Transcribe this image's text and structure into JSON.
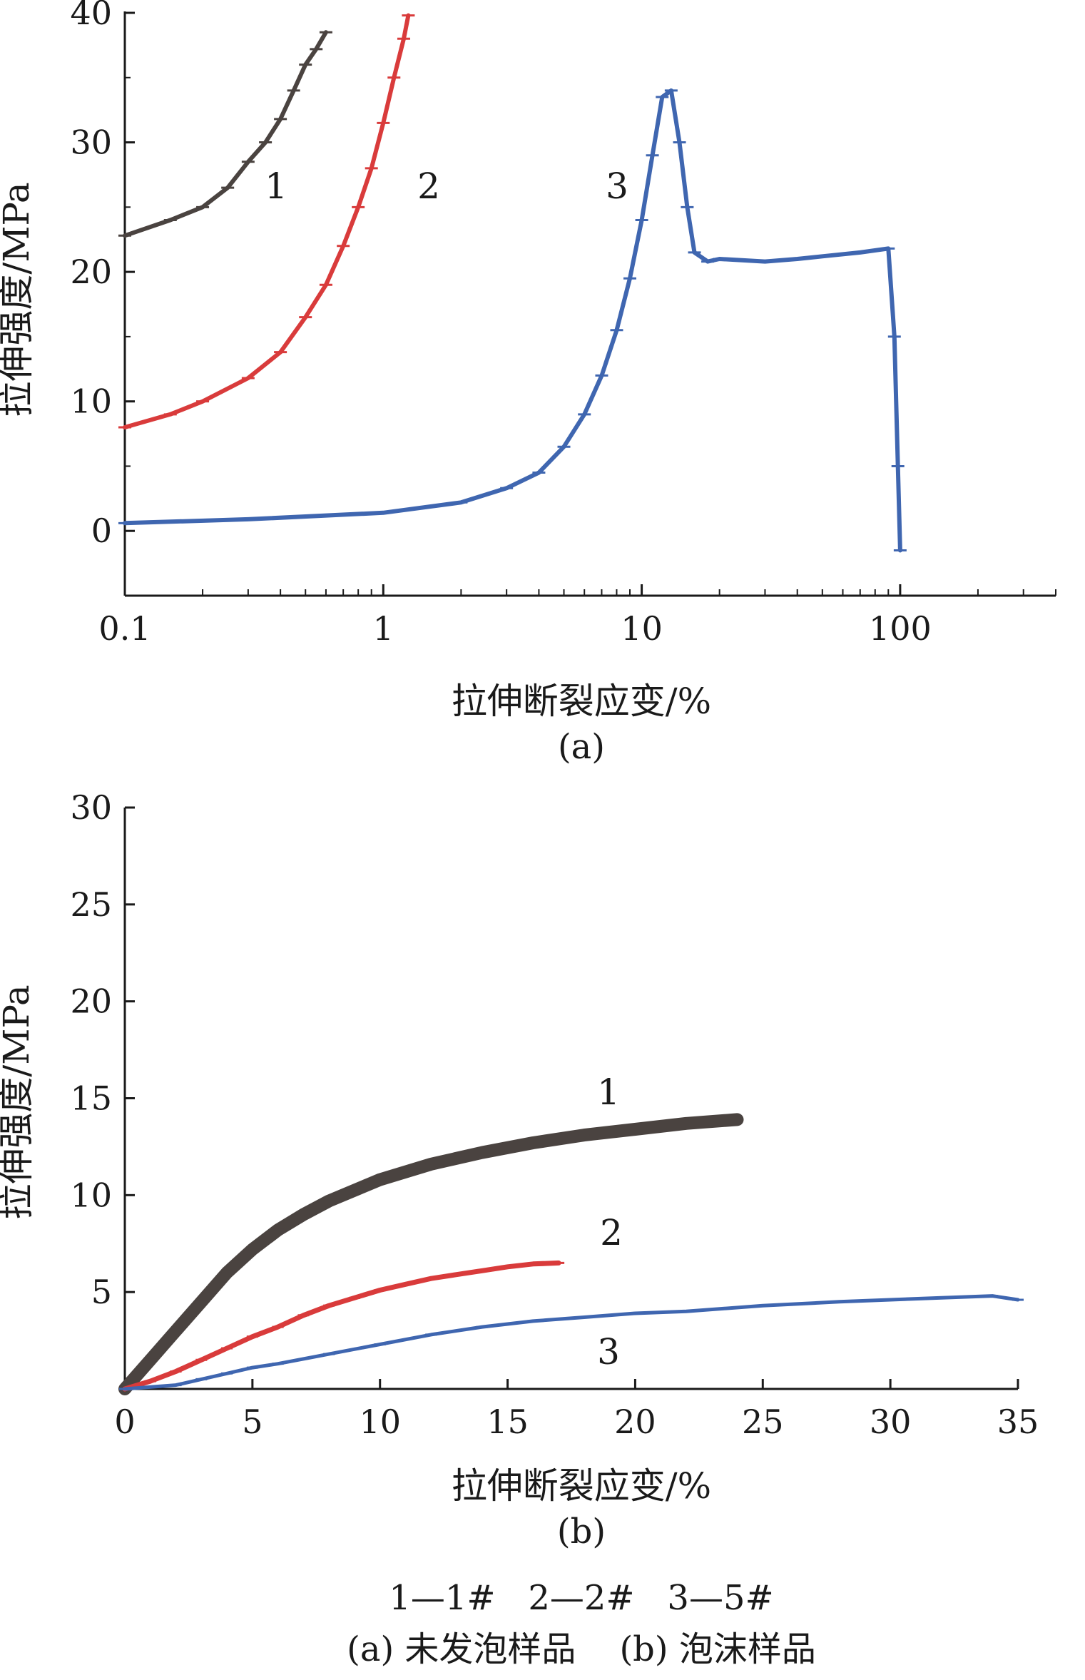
{
  "chart_data": [
    {
      "panel": "(a)",
      "type": "line",
      "xscale": "log",
      "xlabel": "拉伸断裂应变/%",
      "ylabel": "拉伸强度/MPa",
      "xlim": [
        0.1,
        400
      ],
      "ylim": [
        -5,
        40
      ],
      "xticks": [
        0.1,
        1,
        10,
        100
      ],
      "xtick_labels": [
        "0.1",
        "1",
        "10",
        "100"
      ],
      "yticks": [
        0,
        10,
        20,
        30,
        40
      ],
      "ytick_labels": [
        "0",
        "10",
        "20",
        "30",
        "40"
      ],
      "grid": false,
      "series": [
        {
          "name": "1",
          "color": "#4a4340",
          "x": [
            0.1,
            0.15,
            0.2,
            0.25,
            0.3,
            0.35,
            0.4,
            0.45,
            0.5,
            0.55,
            0.6
          ],
          "y": [
            22.8,
            24.0,
            25.0,
            26.5,
            28.5,
            30.0,
            31.8,
            34.0,
            36.0,
            37.2,
            38.5
          ]
        },
        {
          "name": "2",
          "color": "#d93b3b",
          "x": [
            0.1,
            0.15,
            0.2,
            0.3,
            0.4,
            0.5,
            0.6,
            0.7,
            0.8,
            0.9,
            1.0,
            1.1,
            1.2,
            1.25
          ],
          "y": [
            8.0,
            9.0,
            10.0,
            11.8,
            13.8,
            16.5,
            19.0,
            22.0,
            25.0,
            28.0,
            31.5,
            35.0,
            38.0,
            39.8
          ]
        },
        {
          "name": "3",
          "color": "#3f66b0",
          "x": [
            0.1,
            0.3,
            1,
            2,
            3,
            4,
            5,
            6,
            7,
            8,
            9,
            10,
            11,
            12,
            13,
            14,
            15,
            16,
            18,
            20,
            30,
            40,
            50,
            70,
            90,
            95,
            98,
            100
          ],
          "y": [
            0.6,
            0.9,
            1.4,
            2.2,
            3.3,
            4.5,
            6.5,
            9.0,
            12.0,
            15.5,
            19.5,
            24.0,
            29.0,
            33.5,
            34.0,
            30.0,
            25.0,
            21.5,
            20.8,
            21.0,
            20.8,
            21.0,
            21.2,
            21.5,
            21.8,
            15.0,
            5.0,
            -1.5
          ]
        }
      ]
    },
    {
      "panel": "(b)",
      "type": "line",
      "xlabel": "拉伸断裂应变/%",
      "ylabel": "拉伸强度/MPa",
      "xlim": [
        0,
        35
      ],
      "ylim": [
        0,
        30
      ],
      "xticks": [
        0,
        5,
        10,
        15,
        20,
        25,
        30,
        35
      ],
      "yticks": [
        5,
        10,
        15,
        20,
        25,
        30
      ],
      "grid": false,
      "series": [
        {
          "name": "1",
          "color": "#4a4340",
          "x": [
            0,
            1,
            2,
            3,
            4,
            5,
            6,
            7,
            8,
            10,
            12,
            14,
            16,
            18,
            20,
            22,
            24
          ],
          "y": [
            0,
            1.5,
            3.0,
            4.5,
            6.0,
            7.2,
            8.2,
            9.0,
            9.7,
            10.8,
            11.6,
            12.2,
            12.7,
            13.1,
            13.4,
            13.7,
            13.9
          ]
        },
        {
          "name": "2",
          "color": "#d93b3b",
          "x": [
            0,
            1,
            2,
            3,
            4,
            5,
            6,
            7,
            8,
            9,
            10,
            11,
            12,
            13,
            14,
            15,
            16,
            17
          ],
          "y": [
            0,
            0.4,
            0.9,
            1.5,
            2.1,
            2.7,
            3.2,
            3.8,
            4.3,
            4.7,
            5.1,
            5.4,
            5.7,
            5.9,
            6.1,
            6.3,
            6.45,
            6.5
          ]
        },
        {
          "name": "3",
          "color": "#3f66b0",
          "x": [
            0,
            2,
            3,
            4,
            5,
            6,
            8,
            10,
            12,
            14,
            16,
            18,
            20,
            22,
            25,
            28,
            30,
            32,
            34,
            35
          ],
          "y": [
            0,
            0.2,
            0.5,
            0.8,
            1.1,
            1.3,
            1.8,
            2.3,
            2.8,
            3.2,
            3.5,
            3.7,
            3.9,
            4.0,
            4.3,
            4.5,
            4.6,
            4.7,
            4.8,
            4.6
          ]
        }
      ]
    }
  ],
  "labels": {
    "panel_a": "(a)",
    "panel_b": "(b)",
    "legend_line": "1—1#   2—2#   3—5#",
    "caption_line": "(a) 未发泡样品    (b) 泡沫样品"
  },
  "colors": {
    "axis": "#1a1a1a",
    "series1": "#4a4340",
    "series2": "#d93b3b",
    "series3": "#3f66b0"
  }
}
